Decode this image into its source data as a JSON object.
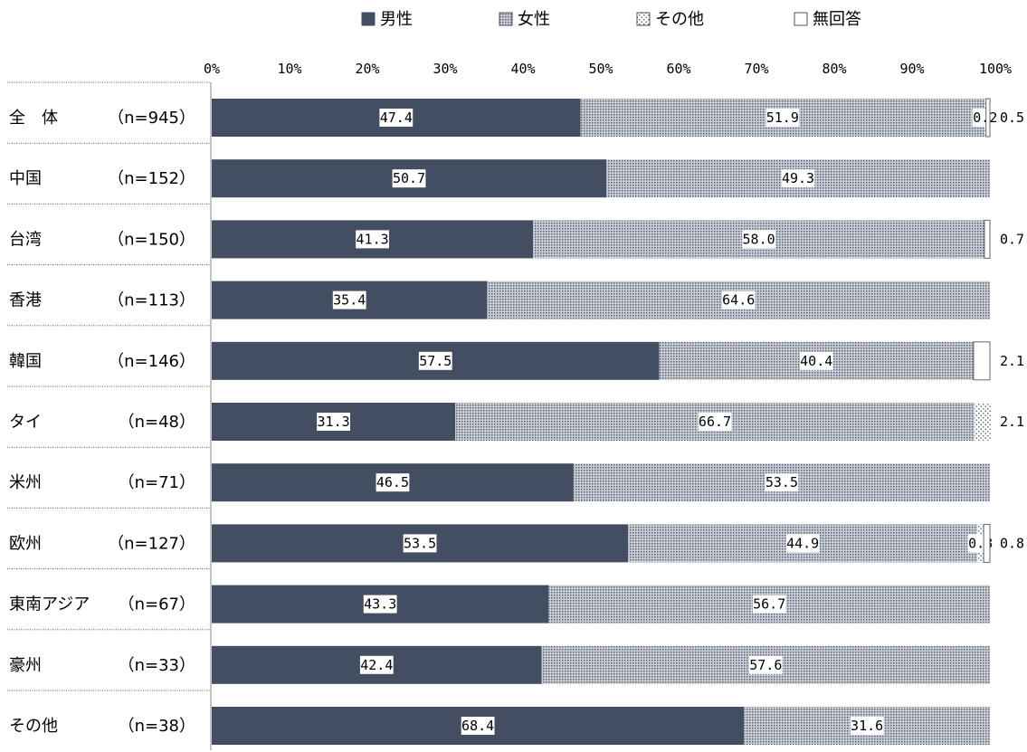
{
  "chart_data": {
    "type": "bar",
    "orientation": "horizontal",
    "stacked": "percent",
    "legend_position": "top",
    "xlim": [
      0,
      100
    ],
    "x_ticks": [
      "0%",
      "10%",
      "20%",
      "30%",
      "40%",
      "50%",
      "60%",
      "70%",
      "80%",
      "90%",
      "100%"
    ],
    "categories": [
      "全　体",
      "中国",
      "台湾",
      "香港",
      "韓国",
      "タイ",
      "米州",
      "欧州",
      "東南アジア",
      "豪州",
      "その他"
    ],
    "n_labels": [
      "（n=945）",
      "（n=152）",
      "（n=150）",
      "（n=113）",
      "（n=146）",
      "（n=48）",
      "（n=71）",
      "（n=127）",
      "（n=67）",
      "（n=33）",
      "（n=38）"
    ],
    "series": [
      {
        "name": "男性",
        "color": "#434e63",
        "pattern": "solid",
        "values": [
          47.4,
          50.7,
          41.3,
          35.4,
          57.5,
          31.3,
          46.5,
          53.5,
          43.3,
          42.4,
          68.4
        ]
      },
      {
        "name": "女性",
        "color": "#9da3ad",
        "pattern": "dense-dots",
        "values": [
          51.9,
          49.3,
          58.0,
          64.6,
          40.4,
          66.7,
          53.5,
          44.9,
          56.7,
          57.6,
          31.6
        ]
      },
      {
        "name": "その他",
        "color": "#c8ccd3",
        "pattern": "sparse-dots",
        "values": [
          0.2,
          0,
          0,
          0,
          0,
          2.1,
          0,
          0.8,
          0,
          0,
          0
        ]
      },
      {
        "name": "無回答",
        "color": "#ffffff",
        "pattern": "empty",
        "values": [
          0.5,
          0,
          0.7,
          0,
          2.1,
          0,
          0,
          0.8,
          0,
          0,
          0
        ]
      }
    ],
    "inside_labels": [
      [
        "47.4",
        "51.9",
        "0.2",
        ""
      ],
      [
        "50.7",
        "49.3",
        "",
        ""
      ],
      [
        "41.3",
        "58.0",
        "",
        ""
      ],
      [
        "35.4",
        "64.6",
        "",
        ""
      ],
      [
        "57.5",
        "40.4",
        "",
        ""
      ],
      [
        "31.3",
        "66.7",
        "",
        ""
      ],
      [
        "46.5",
        "53.5",
        "",
        ""
      ],
      [
        "53.5",
        "44.9",
        "0.8",
        ""
      ],
      [
        "43.3",
        "56.7",
        "",
        ""
      ],
      [
        "42.4",
        "57.6",
        "",
        ""
      ],
      [
        "68.4",
        "31.6",
        "",
        ""
      ]
    ],
    "outside_labels": [
      "0.5",
      "",
      "0.7",
      "",
      "2.1",
      "2.1",
      "",
      "0.8",
      "",
      "",
      ""
    ]
  }
}
